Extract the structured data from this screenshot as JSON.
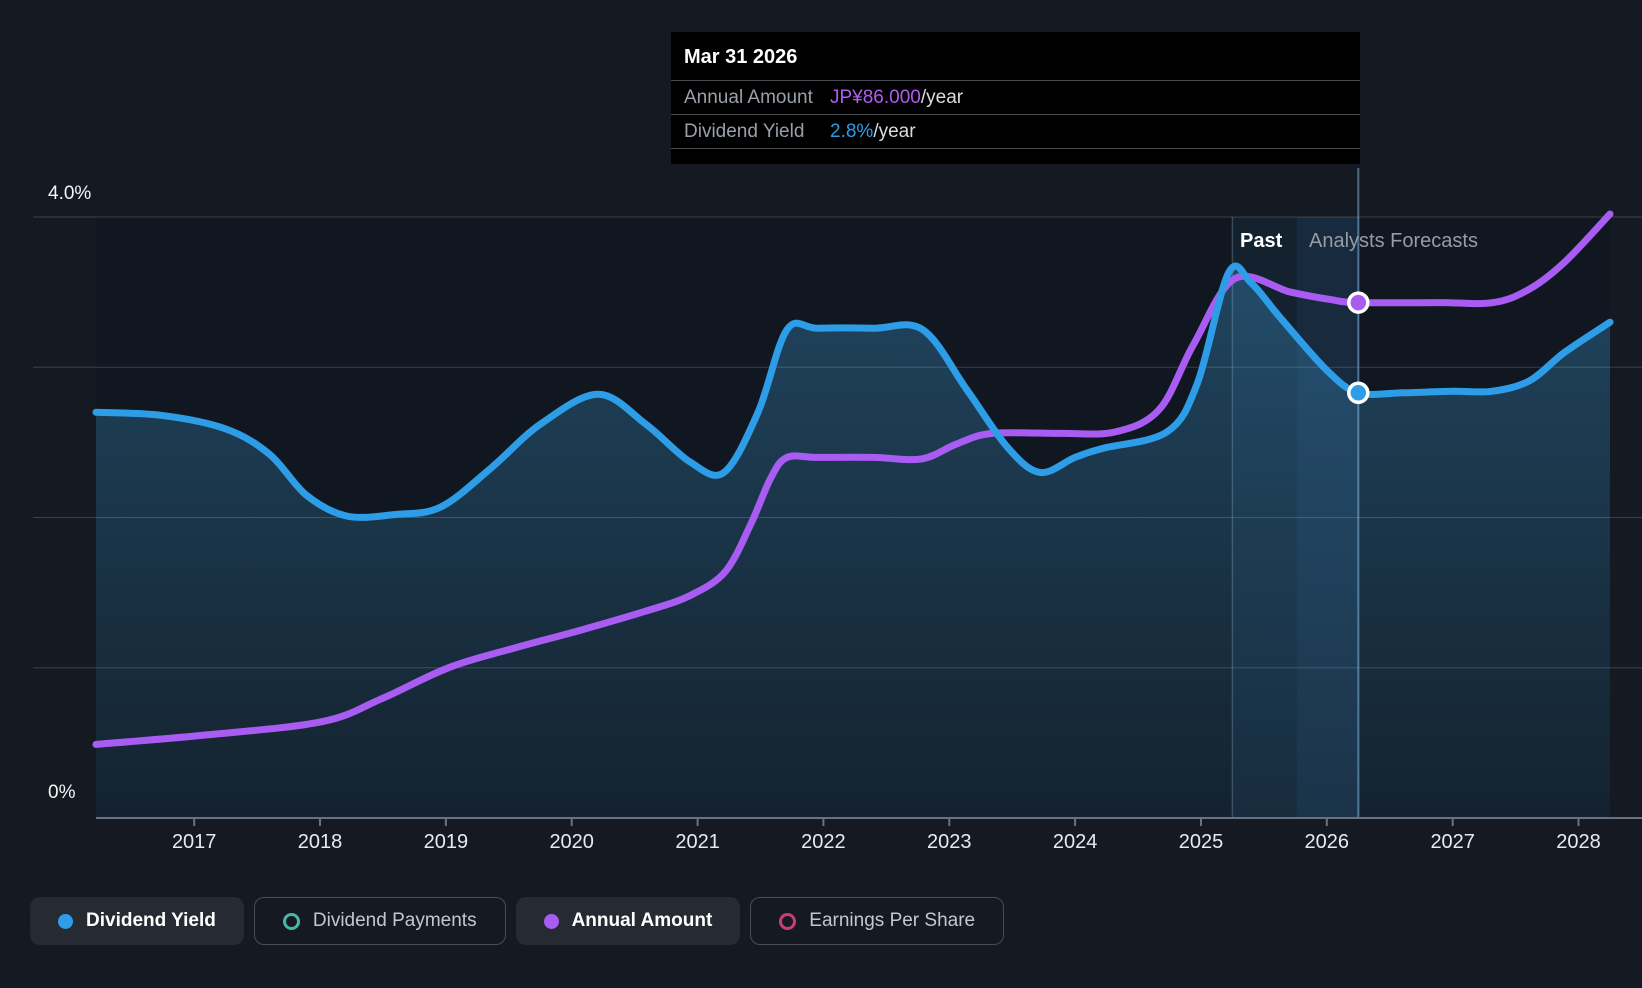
{
  "colors": {
    "page_bg": "#151a22",
    "plot_bg": "#101720",
    "grid": "rgba(190,200,215,0.22)",
    "axis": "#6a7280",
    "band": "#3b86c4",
    "divider": "rgba(160,190,220,0.28)",
    "hover_line": "rgba(130,180,220,0.52)",
    "tooltip_bg": "#000000"
  },
  "tooltip": {
    "title": "Mar 31 2026",
    "rows": [
      {
        "label": "Annual Amount",
        "value": "JP¥86.000",
        "suffix": "/year",
        "value_color": "#b05cf2"
      },
      {
        "label": "Dividend Yield",
        "value": "2.8%",
        "suffix": "/year",
        "value_color": "#2e9de8"
      }
    ]
  },
  "annotations": {
    "past_label": "Past",
    "forecast_label": "Analysts Forecasts"
  },
  "legend": [
    {
      "label": "Dividend Yield",
      "color": "#2e9de8",
      "marker": "filled",
      "active": true
    },
    {
      "label": "Dividend Payments",
      "color": "#45b8a8",
      "marker": "outline",
      "active": false
    },
    {
      "label": "Annual Amount",
      "color": "#a95cf2",
      "marker": "filled",
      "active": true
    },
    {
      "label": "Earnings Per Share",
      "color": "#cc3d78",
      "marker": "outline",
      "active": false
    }
  ],
  "chart_data": {
    "type": "line",
    "x_domain": [
      2016.22,
      2028.25
    ],
    "x_ticks": [
      2017,
      2018,
      2019,
      2020,
      2021,
      2022,
      2023,
      2024,
      2025,
      2026,
      2027,
      2028
    ],
    "ylim": [
      0,
      4
    ],
    "y_gridlines_pct": [
      1,
      2,
      3,
      4
    ],
    "y_axis_labels": {
      "top": "4.0%",
      "bottom": "0%"
    },
    "grid": true,
    "legend_position": "bottom",
    "divider_year": 2025.25,
    "hover_year": 2026.25,
    "forecast_bands": [
      {
        "from": 2025.25,
        "to": 2025.76,
        "opacity": 0.1
      },
      {
        "from": 2025.76,
        "to": 2026.26,
        "opacity": 0.18
      }
    ],
    "series": [
      {
        "name": "Dividend Yield",
        "unit": "%",
        "color": "#2e9de8",
        "area_fill": "#3a8fc4",
        "area": true,
        "marker_at": [
          2026.25,
          2.83
        ],
        "points": [
          [
            2016.22,
            2.7
          ],
          [
            2016.74,
            2.68
          ],
          [
            2017.25,
            2.59
          ],
          [
            2017.6,
            2.42
          ],
          [
            2017.89,
            2.15
          ],
          [
            2018.21,
            2.01
          ],
          [
            2018.6,
            2.02
          ],
          [
            2018.96,
            2.07
          ],
          [
            2019.36,
            2.33
          ],
          [
            2019.75,
            2.62
          ],
          [
            2020.21,
            2.82
          ],
          [
            2020.59,
            2.62
          ],
          [
            2020.94,
            2.37
          ],
          [
            2021.21,
            2.3
          ],
          [
            2021.48,
            2.7
          ],
          [
            2021.71,
            3.25
          ],
          [
            2021.95,
            3.26
          ],
          [
            2022.4,
            3.26
          ],
          [
            2022.79,
            3.25
          ],
          [
            2023.14,
            2.85
          ],
          [
            2023.46,
            2.47
          ],
          [
            2023.72,
            2.3
          ],
          [
            2024.0,
            2.4
          ],
          [
            2024.22,
            2.46
          ],
          [
            2024.73,
            2.57
          ],
          [
            2024.97,
            2.89
          ],
          [
            2025.22,
            3.63
          ],
          [
            2025.4,
            3.56
          ],
          [
            2025.63,
            3.33
          ],
          [
            2026.0,
            2.98
          ],
          [
            2026.25,
            2.83
          ],
          [
            2026.6,
            2.83
          ],
          [
            2027.0,
            2.84
          ],
          [
            2027.31,
            2.84
          ],
          [
            2027.61,
            2.91
          ],
          [
            2027.89,
            3.1
          ],
          [
            2028.25,
            3.3
          ]
        ]
      },
      {
        "name": "Annual Amount",
        "unit": "plotted on hidden secondary scale (left-axis % equivalent)",
        "color": "#a95cf2",
        "area": false,
        "marker_at": [
          2026.25,
          3.43
        ],
        "points": [
          [
            2016.22,
            0.49
          ],
          [
            2017.06,
            0.55
          ],
          [
            2018.01,
            0.64
          ],
          [
            2018.48,
            0.79
          ],
          [
            2019.02,
            1.0
          ],
          [
            2019.54,
            1.13
          ],
          [
            2020.07,
            1.25
          ],
          [
            2020.6,
            1.38
          ],
          [
            2020.94,
            1.48
          ],
          [
            2021.22,
            1.64
          ],
          [
            2021.42,
            1.95
          ],
          [
            2021.58,
            2.26
          ],
          [
            2021.71,
            2.4
          ],
          [
            2021.95,
            2.4
          ],
          [
            2022.4,
            2.4
          ],
          [
            2022.78,
            2.39
          ],
          [
            2023.06,
            2.49
          ],
          [
            2023.34,
            2.56
          ],
          [
            2023.88,
            2.56
          ],
          [
            2024.32,
            2.57
          ],
          [
            2024.67,
            2.72
          ],
          [
            2024.94,
            3.15
          ],
          [
            2025.27,
            3.59
          ],
          [
            2025.71,
            3.5
          ],
          [
            2026.03,
            3.45
          ],
          [
            2026.25,
            3.43
          ],
          [
            2026.9,
            3.43
          ],
          [
            2027.32,
            3.43
          ],
          [
            2027.61,
            3.52
          ],
          [
            2027.89,
            3.7
          ],
          [
            2028.25,
            4.02
          ]
        ]
      }
    ]
  }
}
